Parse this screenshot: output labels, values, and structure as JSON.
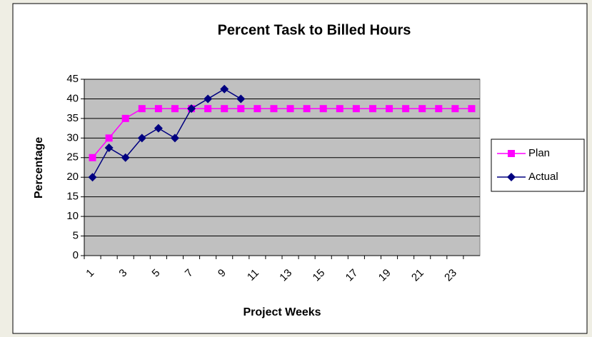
{
  "chart_data": {
    "type": "line",
    "title": "Percent Task to Billed Hours",
    "x_label": "Project Weeks",
    "y_label": "Percentage",
    "categories": [
      1,
      null,
      3,
      null,
      5,
      null,
      7,
      null,
      9,
      null,
      11,
      null,
      13,
      null,
      15,
      null,
      17,
      null,
      19,
      null,
      21,
      null,
      23,
      null
    ],
    "series": [
      {
        "name": "Plan",
        "color": "#ff00ff",
        "marker": "square",
        "values": [
          25,
          30,
          35,
          37.5,
          37.5,
          37.5,
          37.5,
          37.5,
          37.5,
          37.5,
          37.5,
          37.5,
          37.5,
          37.5,
          37.5,
          37.5,
          37.5,
          37.5,
          37.5,
          37.5,
          37.5,
          37.5,
          37.5,
          37.5
        ]
      },
      {
        "name": "Actual",
        "color": "#000080",
        "marker": "diamond",
        "values": [
          20,
          27.5,
          25,
          30,
          32.5,
          30,
          37.5,
          40,
          42.5,
          40,
          null,
          null,
          null,
          null,
          null,
          null,
          null,
          null,
          null,
          null,
          null,
          null,
          null,
          null
        ]
      }
    ],
    "ylim": [
      0,
      45
    ],
    "yticks": [
      0,
      5,
      10,
      15,
      20,
      25,
      30,
      35,
      40,
      45
    ],
    "grid": true,
    "legend": "right"
  }
}
